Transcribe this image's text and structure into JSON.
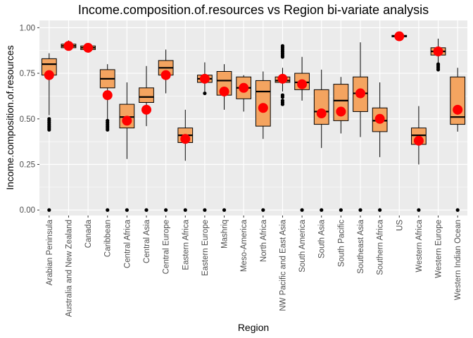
{
  "chart_data": {
    "type": "box",
    "title": "Income.composition.of.resources vs Region bi-variate analysis",
    "xlabel": "Region",
    "ylabel": "Income.composition.of.resources",
    "ylim": [
      -0.03,
      1.04
    ],
    "yticks": [
      0.0,
      0.25,
      0.5,
      0.75,
      1.0
    ],
    "ytick_labels": [
      "0.00",
      "0.25",
      "0.50",
      "0.75",
      "1.00"
    ],
    "grid": true,
    "legend": "none",
    "categories": [
      "Arabian Peninsula",
      "Australia and New Zealand",
      "Canada",
      "Caribbean",
      "Central Africa",
      "Central Asia",
      "Central Europe",
      "Eastern Africa",
      "Eastern Europe",
      "Mashriq",
      "Meso-America",
      "North Africa",
      "NW Pacific and East Asia",
      "South America",
      "South Asia",
      "South Pacific",
      "Southeast Asia",
      "Southern Africa",
      "US",
      "Western Africa",
      "Western Europe",
      "Western Indian Ocean"
    ],
    "box": {
      "lower_whisker": [
        0.52,
        0.88,
        0.87,
        0.5,
        0.28,
        0.46,
        0.64,
        0.27,
        0.65,
        0.55,
        0.54,
        0.39,
        0.65,
        0.6,
        0.34,
        0.42,
        0.4,
        0.29,
        0.94,
        0.25,
        0.8,
        0.43
      ],
      "q1": [
        0.74,
        0.89,
        0.88,
        0.67,
        0.45,
        0.59,
        0.74,
        0.37,
        0.7,
        0.63,
        0.61,
        0.46,
        0.7,
        0.66,
        0.47,
        0.49,
        0.54,
        0.43,
        0.95,
        0.36,
        0.85,
        0.47
      ],
      "median": [
        0.8,
        0.9,
        0.89,
        0.72,
        0.51,
        0.62,
        0.78,
        0.41,
        0.72,
        0.71,
        0.67,
        0.65,
        0.71,
        0.7,
        0.54,
        0.6,
        0.64,
        0.49,
        0.953,
        0.41,
        0.87,
        0.51
      ],
      "q3": [
        0.83,
        0.91,
        0.9,
        0.77,
        0.58,
        0.67,
        0.82,
        0.45,
        0.74,
        0.76,
        0.73,
        0.71,
        0.73,
        0.75,
        0.66,
        0.69,
        0.73,
        0.56,
        0.958,
        0.45,
        0.89,
        0.73
      ],
      "upper_whisker": [
        0.86,
        0.93,
        0.91,
        0.8,
        0.7,
        0.79,
        0.88,
        0.55,
        0.81,
        0.8,
        0.74,
        0.76,
        0.78,
        0.84,
        0.77,
        0.73,
        0.92,
        0.7,
        0.96,
        0.57,
        0.94,
        0.78
      ],
      "mean": [
        0.74,
        0.9,
        0.89,
        0.63,
        0.49,
        0.55,
        0.74,
        0.39,
        0.72,
        0.65,
        0.67,
        0.56,
        0.72,
        0.69,
        0.53,
        0.54,
        0.64,
        0.5,
        0.953,
        0.38,
        0.87,
        0.55
      ],
      "outliers": [
        [
          0.0,
          0.44,
          0.45,
          0.46,
          0.47,
          0.48,
          0.49,
          0.5
        ],
        [],
        [],
        [
          0.0,
          0.44,
          0.45,
          0.46,
          0.47,
          0.48,
          0.49
        ],
        [
          0.0
        ],
        [
          0.0
        ],
        [
          0.0
        ],
        [
          0.0
        ],
        [
          0.0,
          0.64
        ],
        [
          0.0
        ],
        [],
        [
          0.0
        ],
        [
          0.58,
          0.59,
          0.6,
          0.62,
          0.63,
          0.84,
          0.85,
          0.86,
          0.87,
          0.88,
          0.89,
          0.9
        ],
        [
          0.0
        ],
        [
          0.0
        ],
        [
          0.0
        ],
        [
          0.0
        ],
        [
          0.0
        ],
        [],
        [
          0.0
        ],
        [
          0.77,
          0.78,
          0.79,
          0.8
        ],
        [
          0.0
        ]
      ]
    }
  },
  "colors": {
    "panel": "#ebebeb",
    "grid": "#ffffff",
    "box_fill": "#f4a460",
    "mean_point": "#ff0000",
    "outline": "#000000",
    "tick_text": "#4d4d4d"
  }
}
